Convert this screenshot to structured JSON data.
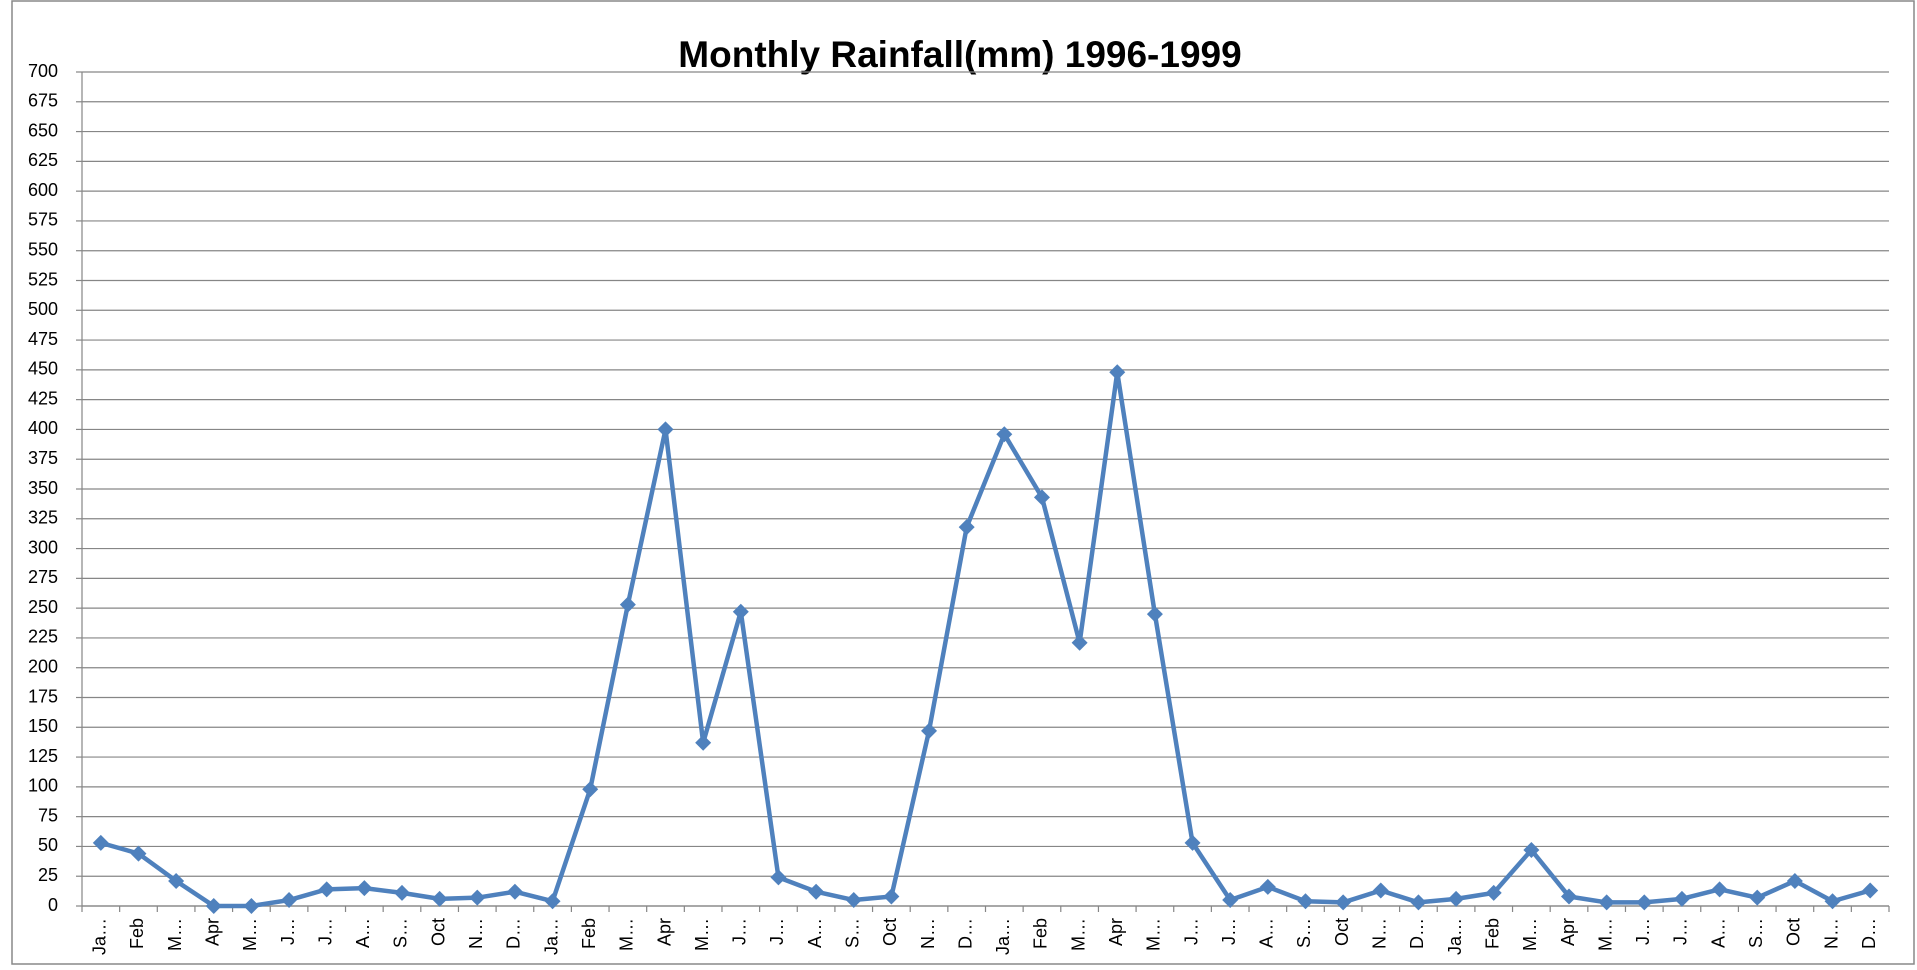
{
  "chart_data": {
    "type": "line",
    "title": "Monthly Rainfall(mm) 1996-1999",
    "categories": [
      "Ja…",
      "Feb",
      "M…",
      "Apr",
      "M…",
      "J…",
      "J…",
      "A…",
      "S…",
      "Oct",
      "N…",
      "D…",
      "Ja…",
      "Feb",
      "M…",
      "Apr",
      "M…",
      "J…",
      "J…",
      "A…",
      "S…",
      "Oct",
      "N…",
      "D…",
      "Ja…",
      "Feb",
      "M…",
      "Apr",
      "M…",
      "J…",
      "J…",
      "A…",
      "S…",
      "Oct",
      "N…",
      "D…",
      "Ja…",
      "Feb",
      "M…",
      "Apr",
      "M…",
      "J…",
      "J…",
      "A…",
      "S…",
      "Oct",
      "N…",
      "D…"
    ],
    "values": [
      53,
      44,
      21,
      0,
      0,
      5,
      14,
      15,
      11,
      6,
      7,
      12,
      4,
      98,
      253,
      400,
      137,
      247,
      24,
      12,
      5,
      8,
      147,
      318,
      396,
      343,
      221,
      448,
      245,
      53,
      5,
      16,
      4,
      3,
      13,
      3,
      6,
      11,
      47,
      8,
      3,
      3,
      6,
      14,
      7,
      21,
      4,
      13
    ],
    "color": "#4f81bd",
    "ylim": [
      0,
      700
    ],
    "yticks": [
      0,
      25,
      50,
      75,
      100,
      125,
      150,
      175,
      200,
      225,
      250,
      275,
      300,
      325,
      350,
      375,
      400,
      425,
      450,
      475,
      500,
      525,
      550,
      575,
      600,
      625,
      650,
      675,
      700
    ],
    "grid": true
  }
}
